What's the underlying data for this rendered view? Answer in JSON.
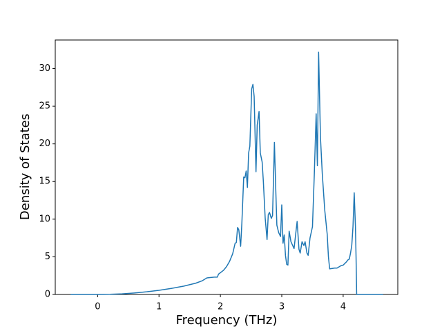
{
  "chart_data": {
    "type": "line",
    "xlabel": "Frequency (THz)",
    "ylabel": "Density of States",
    "xlim": [
      -0.69,
      4.89
    ],
    "ylim": [
      0,
      33.8
    ],
    "xticks": [
      0,
      1,
      2,
      3,
      4
    ],
    "yticks": [
      0,
      5,
      10,
      15,
      20,
      25,
      30
    ],
    "series": [
      {
        "color": "#1f77b4",
        "x": [
          -0.44,
          0,
          0.2,
          0.4,
          0.6,
          0.8,
          1.0,
          1.2,
          1.4,
          1.6,
          1.7,
          1.78,
          1.9,
          1.95,
          1.97,
          2.05,
          2.1,
          2.15,
          2.2,
          2.24,
          2.26,
          2.28,
          2.3,
          2.33,
          2.35,
          2.38,
          2.4,
          2.42,
          2.44,
          2.46,
          2.48,
          2.51,
          2.53,
          2.55,
          2.58,
          2.6,
          2.63,
          2.65,
          2.68,
          2.7,
          2.73,
          2.76,
          2.78,
          2.8,
          2.83,
          2.85,
          2.88,
          2.9,
          2.92,
          2.95,
          2.98,
          3.0,
          3.02,
          3.04,
          3.06,
          3.08,
          3.1,
          3.12,
          3.15,
          3.2,
          3.25,
          3.28,
          3.3,
          3.33,
          3.36,
          3.38,
          3.41,
          3.43,
          3.46,
          3.5,
          3.53,
          3.56,
          3.58,
          3.6,
          3.63,
          3.66,
          3.7,
          3.74,
          3.76,
          3.78,
          3.86,
          3.9,
          3.96,
          4.0,
          4.05,
          4.08,
          4.1,
          4.12,
          4.14,
          4.16,
          4.18,
          4.2,
          4.21,
          4.22,
          4.65
        ],
        "values": [
          0,
          0,
          0.02,
          0.08,
          0.2,
          0.35,
          0.55,
          0.8,
          1.1,
          1.5,
          1.8,
          2.2,
          2.3,
          2.3,
          2.7,
          3.2,
          3.7,
          4.4,
          5.4,
          6.8,
          6.9,
          8.9,
          8.6,
          6.4,
          9.5,
          15.6,
          15.5,
          16.4,
          14.2,
          18.8,
          19.7,
          27.3,
          27.9,
          26.3,
          16.3,
          22.5,
          24.3,
          18.8,
          17.6,
          15,
          10.1,
          7.3,
          10.6,
          10.9,
          10.1,
          10.5,
          20.2,
          14.5,
          9.2,
          8.2,
          7.7,
          11.9,
          6.8,
          7.9,
          5.2,
          4.0,
          3.9,
          8.4,
          7.0,
          6.1,
          9.7,
          6.0,
          5.5,
          7.0,
          6.5,
          7.0,
          5.5,
          5.2,
          7.5,
          9,
          16,
          24,
          17.1,
          32.2,
          20.9,
          16,
          11.2,
          8,
          5,
          3.4,
          3.5,
          3.5,
          3.8,
          3.9,
          4.3,
          4.6,
          4.7,
          5.5,
          6.5,
          9,
          13.5,
          9,
          5,
          0,
          0
        ]
      }
    ]
  }
}
